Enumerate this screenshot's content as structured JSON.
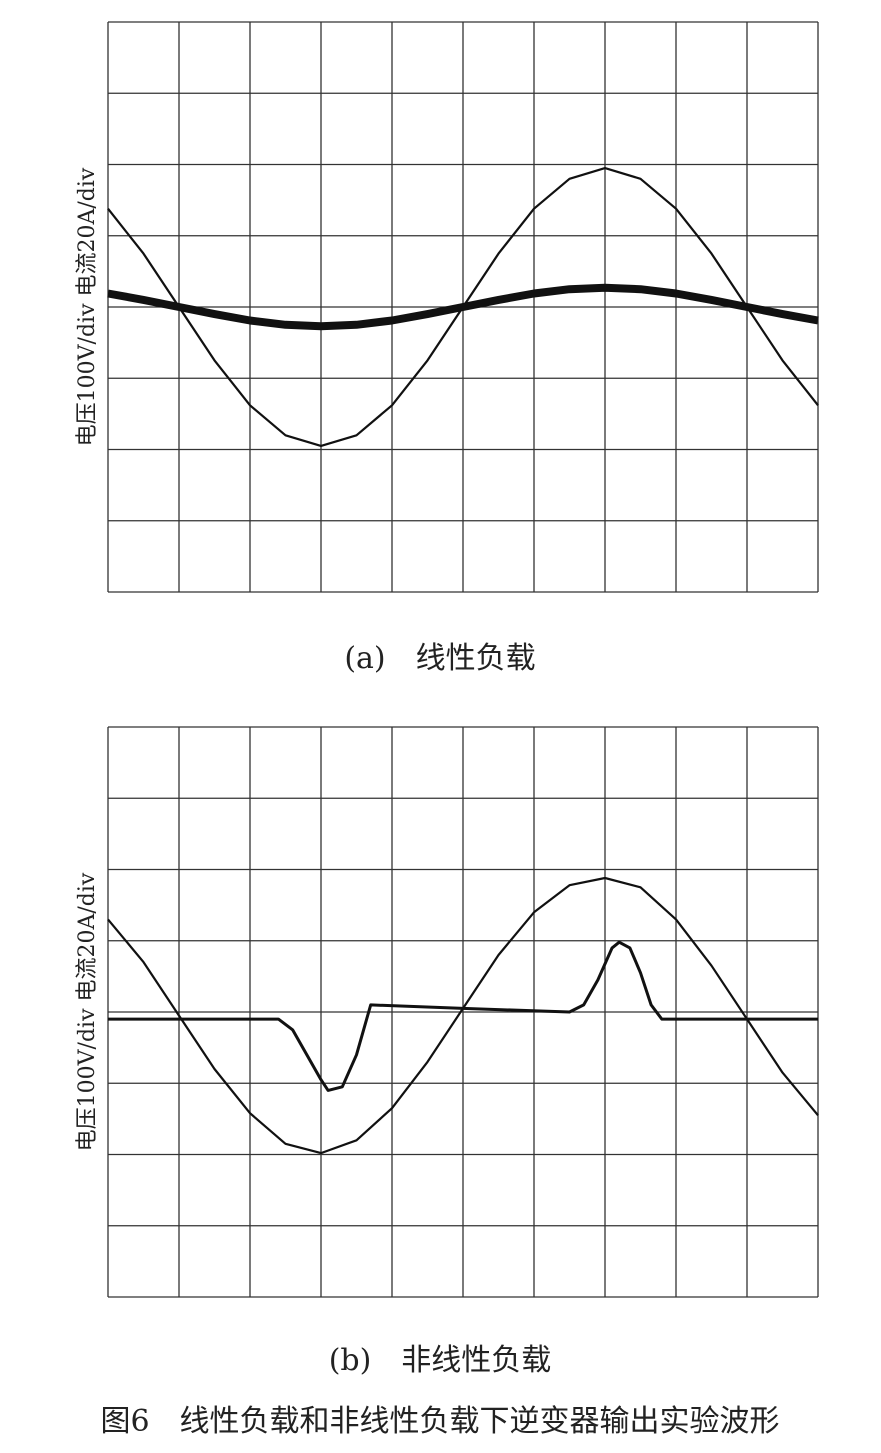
{
  "caption": "图6　线性负载和非线性负载下逆变器输出实验波形",
  "chart_data": [
    {
      "type": "line",
      "title": "(a)　线性负载",
      "ylabel": "电压100V/div  电流20A/div",
      "xlim": [
        0,
        10
      ],
      "ylim": [
        -4,
        4
      ],
      "xticks": [
        0,
        1,
        2,
        3,
        4,
        5,
        6,
        7,
        8,
        9,
        10
      ],
      "yticks": [
        -4,
        -3,
        -2,
        -1,
        0,
        1,
        2,
        3,
        4
      ],
      "grid": true,
      "tick_labels": false,
      "series": [
        {
          "color": "#111111",
          "x": [
            0,
            0.5,
            1,
            1.5,
            2,
            2.5,
            3,
            3.5,
            4,
            4.5,
            5,
            5.5,
            6,
            6.5,
            7,
            7.5,
            8,
            8.5,
            9,
            9.5,
            10
          ],
          "values": [
            1.38,
            0.75,
            0,
            -0.75,
            -1.38,
            -1.8,
            -1.95,
            -1.8,
            -1.38,
            -0.75,
            0,
            0.75,
            1.38,
            1.8,
            1.95,
            1.8,
            1.38,
            0.75,
            0,
            -0.75,
            -1.38
          ]
        },
        {
          "color": "#111111",
          "x": [
            0,
            0.5,
            1,
            1.5,
            2,
            2.5,
            3,
            3.5,
            4,
            4.5,
            5,
            5.5,
            6,
            6.5,
            7,
            7.5,
            8,
            8.5,
            9,
            9.5,
            10
          ],
          "values": [
            0.19,
            0.1,
            0,
            -0.1,
            -0.19,
            -0.25,
            -0.27,
            -0.25,
            -0.19,
            -0.1,
            0,
            0.1,
            0.19,
            0.25,
            0.27,
            0.25,
            0.19,
            0.1,
            0,
            -0.1,
            -0.19
          ]
        }
      ]
    },
    {
      "type": "line",
      "title": "(b)　非线性负载",
      "ylabel": "电压100V/div  电流20A/div",
      "xlim": [
        0,
        10
      ],
      "ylim": [
        -4,
        4
      ],
      "xticks": [
        0,
        1,
        2,
        3,
        4,
        5,
        6,
        7,
        8,
        9,
        10
      ],
      "yticks": [
        -4,
        -3,
        -2,
        -1,
        0,
        1,
        2,
        3,
        4
      ],
      "grid": true,
      "tick_labels": false,
      "series": [
        {
          "color": "#111111",
          "x": [
            0,
            0.5,
            1,
            1.5,
            2,
            2.5,
            3,
            3.5,
            4,
            4.5,
            5,
            5.5,
            6,
            6.5,
            7,
            7.5,
            8,
            8.5,
            9,
            9.5,
            10
          ],
          "values": [
            1.3,
            0.7,
            -0.05,
            -0.8,
            -1.42,
            -1.85,
            -1.98,
            -1.8,
            -1.35,
            -0.7,
            0.05,
            0.8,
            1.4,
            1.78,
            1.88,
            1.75,
            1.3,
            0.65,
            -0.1,
            -0.85,
            -1.45
          ]
        },
        {
          "color": "#111111",
          "x": [
            0,
            2.4,
            2.6,
            2.8,
            3.0,
            3.1,
            3.3,
            3.5,
            3.7,
            5,
            6.5,
            6.7,
            6.9,
            7.1,
            7.2,
            7.35,
            7.5,
            7.65,
            7.8,
            10
          ],
          "values": [
            -0.1,
            -0.1,
            -0.25,
            -0.6,
            -0.95,
            -1.1,
            -1.05,
            -0.6,
            0.1,
            0.05,
            0,
            0.1,
            0.45,
            0.9,
            0.98,
            0.9,
            0.55,
            0.1,
            -0.1,
            -0.1
          ]
        }
      ]
    }
  ]
}
